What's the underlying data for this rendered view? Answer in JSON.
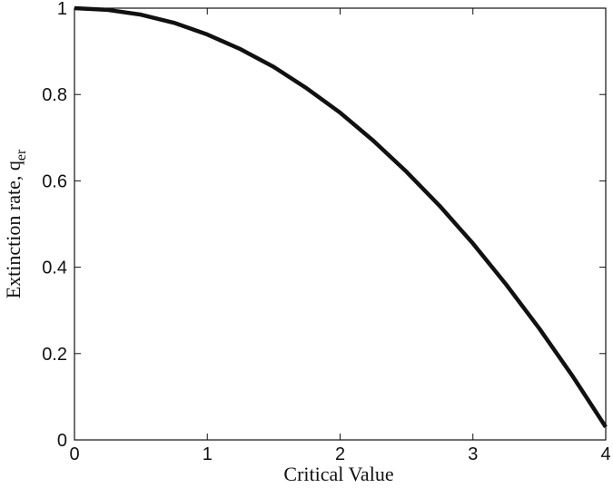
{
  "chart_data": {
    "type": "line",
    "xlabel": "Critical Value",
    "ylabel": "Extinction rate, q",
    "ylabel_subscript": "er",
    "x": [
      0,
      0.25,
      0.5,
      0.75,
      1,
      1.25,
      1.5,
      1.75,
      2,
      2.25,
      2.5,
      2.75,
      3,
      3.25,
      3.5,
      3.75,
      4
    ],
    "values": [
      1,
      0.996,
      0.985,
      0.966,
      0.939,
      0.905,
      0.864,
      0.814,
      0.758,
      0.693,
      0.621,
      0.542,
      0.455,
      0.36,
      0.258,
      0.148,
      0.03
    ],
    "color": "#111111",
    "xlim": [
      0,
      4
    ],
    "xticks": [
      0,
      1,
      2,
      3,
      4
    ],
    "ylim": [
      0,
      1
    ],
    "yticks": [
      0,
      0.2,
      0.4,
      0.6,
      0.8,
      1
    ]
  }
}
